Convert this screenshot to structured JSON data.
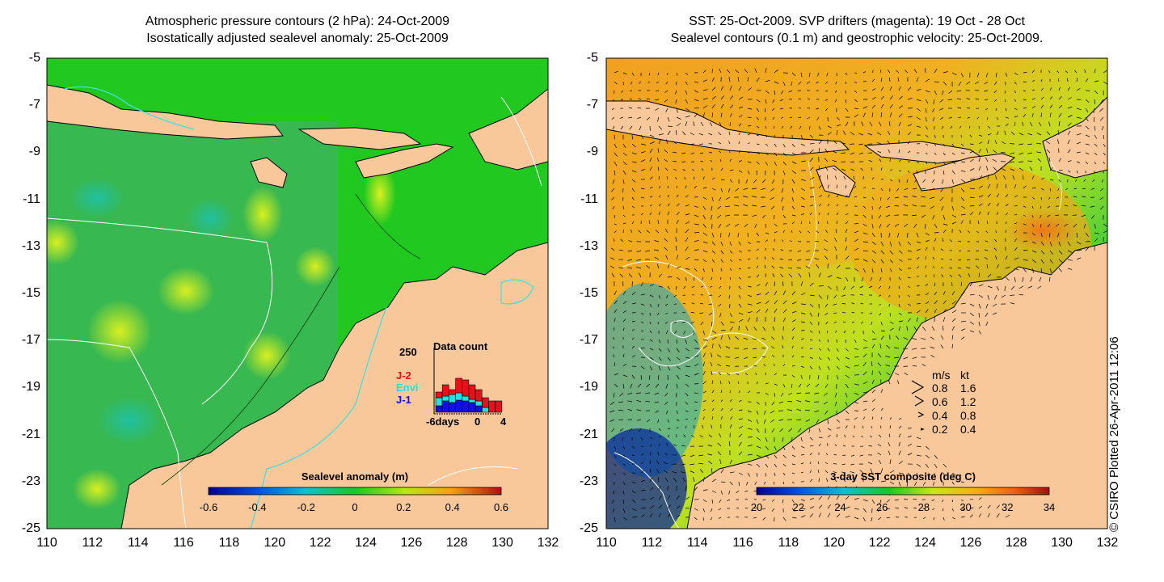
{
  "left_panel": {
    "title_line1": "Atmospheric pressure contours (2 hPa): 24-Oct-2009",
    "title_line2": "Isostatically adjusted sealevel anomaly: 25-Oct-2009",
    "colorbar": {
      "label": "Sealevel anomaly (m)",
      "ticks": [
        "-0.6",
        "-0.4",
        "-0.2",
        "0",
        "0.2",
        "0.4",
        "0.6"
      ]
    },
    "data_count": {
      "title": "Data count",
      "ymax_label": "250",
      "xlabel": "-6days",
      "x_ticks": [
        "0",
        "4"
      ],
      "legend": [
        "J-2",
        "Envi",
        "J-1"
      ],
      "legend_colors": [
        "#e8101a",
        "#20e0e0",
        "#1010e0"
      ]
    }
  },
  "right_panel": {
    "title_line1": "SST: 25-Oct-2009. SVP drifters (magenta): 19 Oct - 28 Oct",
    "title_line2": "Sealevel contours (0.1 m) and geostrophic velocity: 25-Oct-2009.",
    "colorbar": {
      "label": "3-day SST composite (deg C)",
      "ticks": [
        "20",
        "22",
        "24",
        "26",
        "28",
        "30",
        "32",
        "34"
      ]
    },
    "speed_legend": {
      "header_ms": "m/s",
      "header_kt": "kt",
      "rows": [
        {
          "ms": "0.8",
          "kt": "1.6"
        },
        {
          "ms": "0.6",
          "kt": "1.2"
        },
        {
          "ms": "0.4",
          "kt": "0.8"
        },
        {
          "ms": "0.2",
          "kt": "0.4"
        }
      ]
    }
  },
  "axes": {
    "y_ticks": [
      "-5",
      "-7",
      "-9",
      "-11",
      "-13",
      "-15",
      "-17",
      "-19",
      "-21",
      "-23",
      "-25"
    ],
    "x_ticks": [
      "110",
      "112",
      "114",
      "116",
      "118",
      "120",
      "122",
      "124",
      "126",
      "128",
      "130",
      "132"
    ]
  },
  "credit": "© CSIRO Plotted 26-Apr-2011 12:06",
  "colors": {
    "land": "#f9c89a",
    "sea_green": "#20c820",
    "sst_orange": "#f0b020"
  }
}
